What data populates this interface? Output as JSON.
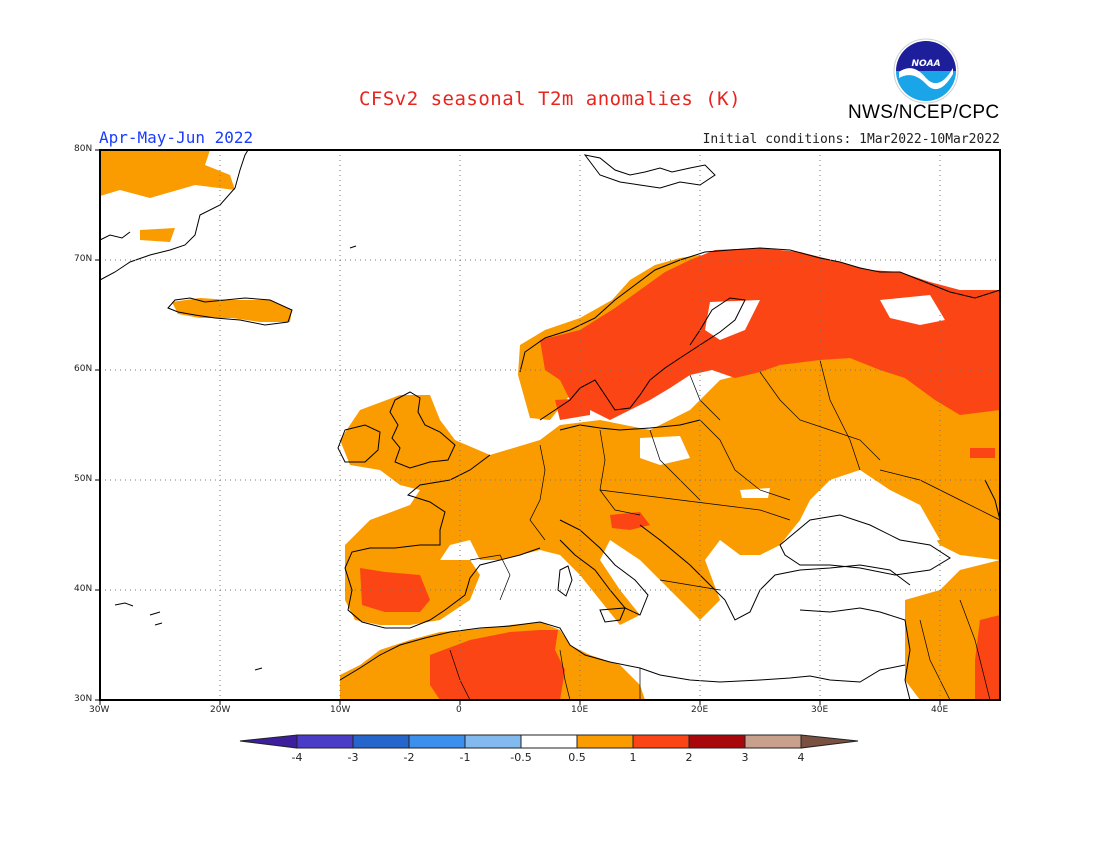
{
  "title": "CFSv2 seasonal T2m anomalies (K)",
  "season": "Apr-May-Jun 2022",
  "initial_conditions": "Initial conditions: 1Mar2022-10Mar2022",
  "organization": "NWS/NCEP/CPC",
  "logo_text": "NOAA",
  "map": {
    "lon_range": [
      -30,
      45
    ],
    "lat_range": [
      30,
      80
    ],
    "lon_ticks": [
      "30W",
      "20W",
      "10W",
      "0",
      "10E",
      "20E",
      "30E",
      "40E"
    ],
    "lat_ticks": [
      "80N",
      "70N",
      "60N",
      "50N",
      "40N",
      "30N"
    ],
    "grid": "dotted",
    "dominant_anomaly": "warm (+0.5 to +2 K) over most of Europe; strongest (+1 to +2 K) over Scandinavia, NW Russia, Iberia and North Africa"
  },
  "colorbar": {
    "ticks": [
      "-4",
      "-3",
      "-2",
      "-1",
      "-0.5",
      "0.5",
      "1",
      "2",
      "3",
      "4"
    ],
    "bins": [
      {
        "range": "< -4",
        "color": "#3d1e9e"
      },
      {
        "range": "-4 to -3",
        "color": "#4b3cc8"
      },
      {
        "range": "-3 to -2",
        "color": "#2565cc"
      },
      {
        "range": "-2 to -1",
        "color": "#3c8fea"
      },
      {
        "range": "-1 to -0.5",
        "color": "#82b9ee"
      },
      {
        "range": "-0.5 to 0.5",
        "color": "#ffffff"
      },
      {
        "range": "0.5 to 1",
        "color": "#fa9b00"
      },
      {
        "range": "1 to 2",
        "color": "#fb4514"
      },
      {
        "range": "2 to 3",
        "color": "#a8080c"
      },
      {
        "range": "3 to 4",
        "color": "#c8a08c"
      },
      {
        "range": "> 4",
        "color": "#7a5040"
      }
    ]
  },
  "colors": {
    "title": "#e8241c",
    "season": "#1a3cff",
    "warm_1": "#fa9b00",
    "warm_2": "#fb4514"
  }
}
